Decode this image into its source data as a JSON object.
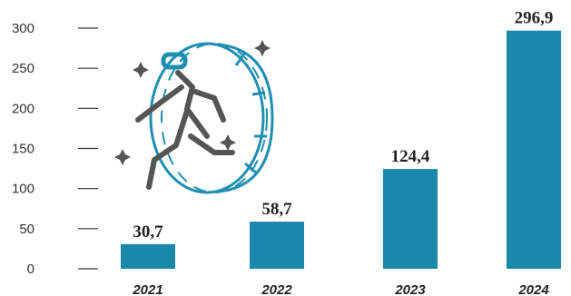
{
  "chart_data": {
    "type": "bar",
    "categories": [
      "2021",
      "2022",
      "2023",
      "2024"
    ],
    "values": [
      30.7,
      58.7,
      124.4,
      296.9
    ],
    "value_labels": [
      "30,7",
      "58,7",
      "124,4",
      "296,9"
    ],
    "title": "",
    "xlabel": "",
    "ylabel": "",
    "ylim": [
      0,
      300
    ],
    "yticks": [
      0,
      50,
      100,
      150,
      200,
      250,
      300
    ],
    "grid": false,
    "legend": "none"
  },
  "colors": {
    "bar": "#1a88aa",
    "tick": "#333333",
    "illustration_dark": "#555555",
    "illustration_accent": "#1e8fb0"
  },
  "illustration": {
    "icon": "vr-person-stepping-through-portal-icon"
  }
}
